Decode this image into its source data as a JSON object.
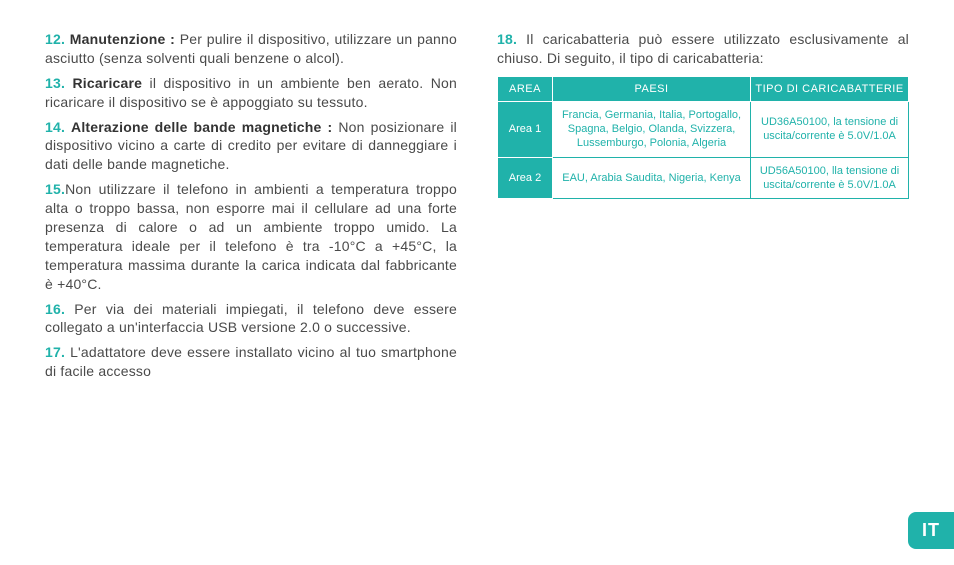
{
  "accent_color": "#20b2aa",
  "text_color": "#4a4a4a",
  "bold_color": "#333333",
  "lang_tab": "IT",
  "left_paragraphs": [
    {
      "num": "12.",
      "bold": "Manutenzione :",
      "text": " Per pulire il dispositivo, utilizzare un panno asciutto (senza solventi quali benzene o alcol)."
    },
    {
      "num": "13.",
      "bold": "Ricaricare",
      "text": " il dispositivo in un ambiente ben aerato. Non ricaricare il dispositivo se è appoggiato su tessuto."
    },
    {
      "num": "14.",
      "bold": "Alterazione delle bande magnetiche :",
      "text": " Non posizionare il dispositivo vicino a carte di credito per evitare di danneggiare i dati delle bande magnetiche."
    },
    {
      "num": "15.",
      "bold": "",
      "text": "Non utilizzare il telefono in ambienti a temperatura troppo alta o troppo bassa, non esporre mai il cellulare ad una forte presenza di calore o ad un ambiente troppo umido.  La temperatura ideale per il telefono è tra -10°C a +45°C, la temperatura massima durante la carica indicata dal fabbricante è  +40°C."
    },
    {
      "num": "16.",
      "bold": "",
      "text": " Per via dei materiali impiegati, il telefono deve essere collegato a un'interfaccia USB versione 2.0 o successive."
    },
    {
      "num": "17.",
      "bold": "",
      "text": " L'adattatore deve essere installato vicino al tuo smartphone di facile accesso"
    }
  ],
  "right_paragraph": {
    "num": "18.",
    "bold": "",
    "text": " Il caricabatteria può essere utilizzato esclusivamente al chiuso. Di seguito, il tipo di caricabatteria:"
  },
  "table": {
    "headers": [
      "AREA",
      "PAESI",
      "TIPO DI CARICABATTERIE"
    ],
    "rows": [
      {
        "area": "Area 1",
        "paesi": "Francia, Germania, Italia, Portogallo, Spagna, Belgio, Olanda, Svizzera, Lussemburgo, Polonia, Algeria",
        "tipo": "UD36A50100, la tensione di uscita/corrente è 5.0V/1.0A"
      },
      {
        "area": "Area 2",
        "paesi": "EAU, Arabia Saudita, Nigeria, Kenya",
        "tipo": "UD56A50100, lla tensione di uscita/corrente è 5.0V/1.0A"
      }
    ]
  }
}
